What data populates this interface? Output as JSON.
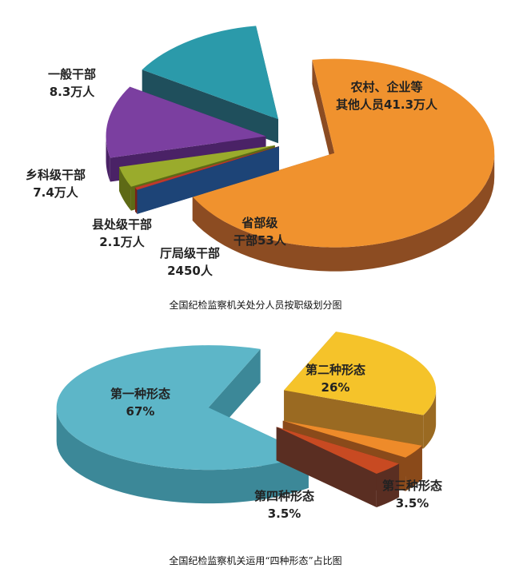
{
  "chart_data": [
    {
      "type": "pie",
      "style": "3d-exploded",
      "title": "全国纪检监察机关处分人员按职级划分图",
      "unit": "人",
      "slices": [
        {
          "name": "农村、企业等其他人员",
          "value": 413000,
          "label_line1": "农村、企业等",
          "label_line2": "其他人员41.3万人",
          "color": "#f0922e",
          "side": "#8c4c22"
        },
        {
          "name": "省部级干部",
          "value": 53,
          "label_line1": "省部级",
          "label_line2": "干部53人",
          "color": "#2f6db5",
          "side": "#1d4477"
        },
        {
          "name": "厅局级干部",
          "value": 2450,
          "label_line1": "厅局级干部",
          "label_line2": "2450人",
          "color": "#c0392b",
          "side": "#7a2018"
        },
        {
          "name": "县处级干部",
          "value": 21000,
          "label_line1": "县处级干部",
          "label_line2": "2.1万人",
          "color": "#9aab2c",
          "side": "#5e6a16"
        },
        {
          "name": "乡科级干部",
          "value": 74000,
          "label_line1": "乡科级干部",
          "label_line2": "7.4万人",
          "color": "#7b3fa0",
          "side": "#4a2266"
        },
        {
          "name": "一般干部",
          "value": 83000,
          "label_line1": "一般干部",
          "label_line2": "8.3万人",
          "color": "#2b9aaa",
          "side": "#1f4f5c"
        }
      ]
    },
    {
      "type": "pie",
      "style": "3d-exploded",
      "title": "全国纪检监察机关运用“四种形态”占比图",
      "unit": "%",
      "slices": [
        {
          "name": "第二种形态",
          "value": 26,
          "label_line1": "第二种形态",
          "label_line2": "26%",
          "color": "#f5c32a",
          "side": "#9a6a22"
        },
        {
          "name": "第三种形态",
          "value": 3.5,
          "label_line1": "第三种形态",
          "label_line2": "3.5%",
          "color": "#ee8b2a",
          "side": "#8a4a1a"
        },
        {
          "name": "第四种形态",
          "value": 3.5,
          "label_line1": "第四种形态",
          "label_line2": "3.5%",
          "color": "#c84a22",
          "side": "#5a2e22"
        },
        {
          "name": "第一种形态",
          "value": 67,
          "label_line1": "第一种形态",
          "label_line2": "67%",
          "color": "#5db6c8",
          "side": "#3c8898"
        }
      ]
    }
  ]
}
